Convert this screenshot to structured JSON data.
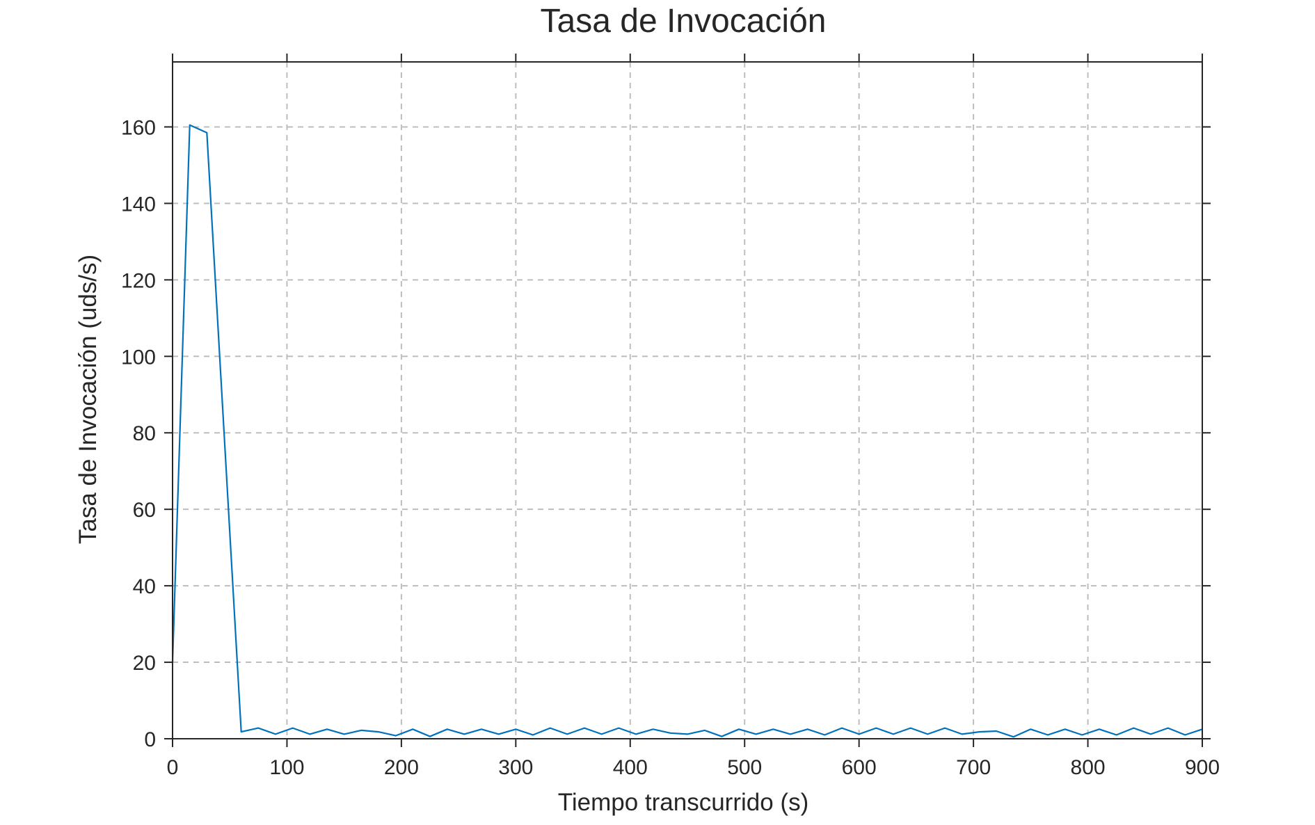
{
  "chart_data": {
    "type": "line",
    "title": "Tasa de Invocación",
    "xlabel": "Tiempo transcurrido (s)",
    "ylabel": "Tasa de Invocación (uds/s)",
    "xlim": [
      0,
      900
    ],
    "ylim": [
      0,
      177
    ],
    "xticks": [
      0,
      100,
      200,
      300,
      400,
      500,
      600,
      700,
      800,
      900
    ],
    "yticks": [
      0,
      20,
      40,
      60,
      80,
      100,
      120,
      140,
      160
    ],
    "grid": true,
    "line_color": "#0072BD",
    "series": [
      {
        "x": [
          0,
          15,
          30,
          60,
          75,
          90,
          105,
          120,
          135,
          150,
          165,
          180,
          195,
          210,
          225,
          240,
          255,
          270,
          285,
          300,
          315,
          330,
          345,
          360,
          375,
          390,
          405,
          420,
          435,
          450,
          465,
          480,
          495,
          510,
          525,
          540,
          555,
          570,
          585,
          600,
          615,
          630,
          645,
          660,
          675,
          690,
          705,
          720,
          735,
          750,
          765,
          780,
          795,
          810,
          825,
          840,
          855,
          870,
          885,
          900
        ],
        "y": [
          20,
          160.5,
          158.5,
          1.8,
          2.8,
          1.2,
          2.8,
          1.2,
          2.5,
          1.2,
          2.2,
          1.8,
          0.8,
          2.5,
          0.6,
          2.5,
          1.2,
          2.5,
          1.2,
          2.5,
          1.0,
          2.8,
          1.2,
          2.8,
          1.2,
          2.8,
          1.2,
          2.5,
          1.5,
          1.2,
          2.2,
          0.6,
          2.5,
          1.2,
          2.5,
          1.2,
          2.5,
          1.0,
          2.8,
          1.2,
          2.8,
          1.2,
          2.8,
          1.2,
          2.8,
          1.2,
          1.8,
          2.0,
          0.5,
          2.5,
          1.0,
          2.5,
          1.0,
          2.5,
          1.0,
          2.8,
          1.2,
          2.8,
          1.0,
          2.5
        ]
      }
    ]
  }
}
